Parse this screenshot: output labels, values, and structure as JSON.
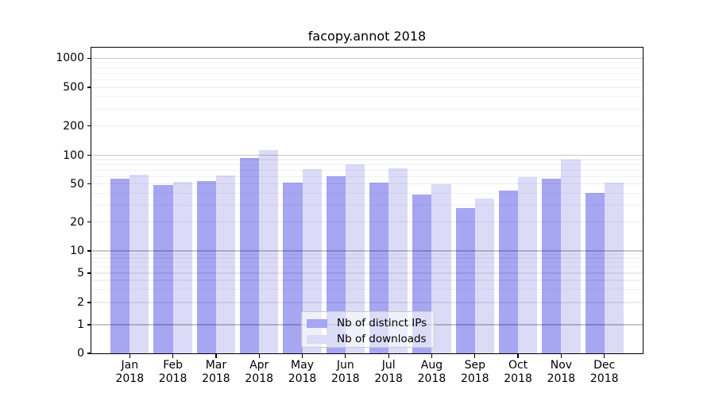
{
  "title": "facopy.annot 2018",
  "chart_data": {
    "type": "bar",
    "title": "facopy.annot 2018",
    "scale": "symlog",
    "grid": true,
    "legend_position": "lower center",
    "categories": [
      "Jan\n2018",
      "Feb\n2018",
      "Mar\n2018",
      "Apr\n2018",
      "May\n2018",
      "Jun\n2018",
      "Jul\n2018",
      "Aug\n2018",
      "Sep\n2018",
      "Oct\n2018",
      "Nov\n2018",
      "Dec\n2018"
    ],
    "series": [
      {
        "name": "Nb of distinct IPs",
        "color": "#a6a6f2",
        "values": [
          57,
          49,
          54,
          93,
          52,
          60,
          52,
          39,
          28,
          43,
          57,
          40
        ]
      },
      {
        "name": "Nb of downloads",
        "color": "#dbdbf8",
        "values": [
          63,
          53,
          62,
          112,
          71,
          81,
          73,
          50,
          35,
          59,
          90,
          52
        ]
      }
    ],
    "yticks": [
      0,
      1,
      2,
      5,
      10,
      20,
      50,
      100,
      200,
      500,
      1000
    ],
    "ylim": [
      0,
      1000
    ]
  },
  "colors": {
    "grid_major": "rgba(0,0,0,0.215)",
    "grid_mid": "rgba(0,0,0,0.08)",
    "grid_minor": "rgba(0,0,0,0.05)",
    "spine": "#000000",
    "text": "#000000",
    "legend_border": "#c9c9c9"
  }
}
